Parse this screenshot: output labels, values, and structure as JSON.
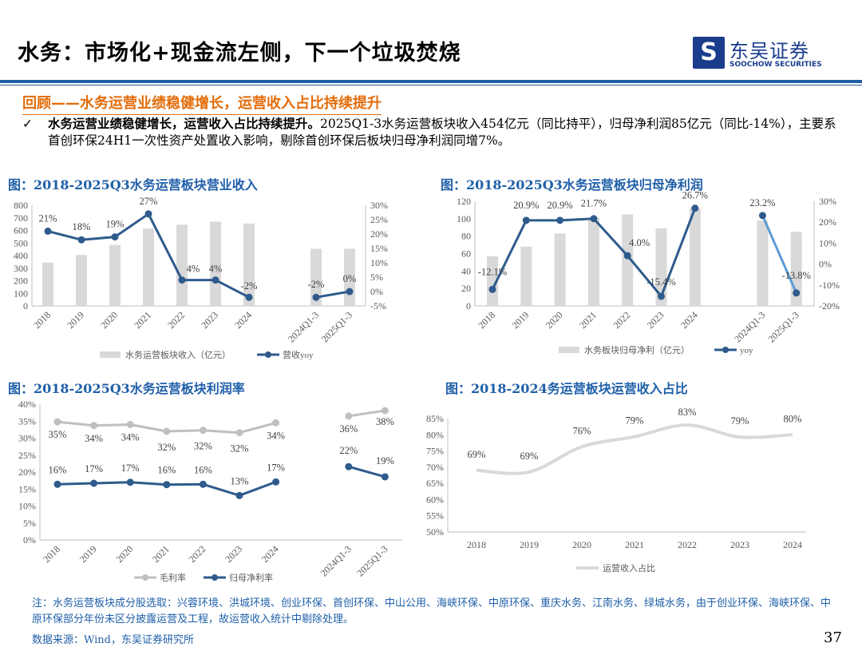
{
  "header": {
    "title": "水务：市场化+现金流左侧，下一个垃圾焚烧",
    "logo_cn": "东吴证券",
    "logo_en": "SOOCHOW SECURITIES"
  },
  "subheading": "回顾——水务运营业绩稳健增长，运营收入占比持续提升",
  "bullet": {
    "icon": "checkmark-icon",
    "bold": "水务运营业绩稳健增长，运营收入占比持续提升。",
    "text": "2025Q1-3水务运营板块收入454亿元（同比持平），归母净利润85亿元（同比-14%），主要系首创环保24H1一次性资产处置收入影响，剔除首创环保后板块归母净利润同增7%。"
  },
  "colors": {
    "title_blue": "#1f5fa8",
    "accent_orange": "#e36c09",
    "bar_gray": "#d9d9d9",
    "line_navy": "#2e5b8c",
    "line_light_blue": "#5b9bd5",
    "line_gray": "#bfbfbf"
  },
  "chart_data": [
    {
      "type": "bar+line",
      "title": "图：2018-2025Q3水务运营板块营业收入",
      "categories": [
        "2018",
        "2019",
        "2020",
        "2021",
        "2022",
        "2023",
        "2024",
        "2024Q1-3",
        "2025Q1-3"
      ],
      "series": [
        {
          "name": "水务运营板块收入（亿元）",
          "type": "bar",
          "axis": "left",
          "values": [
            345,
            405,
            485,
            615,
            645,
            670,
            655,
            454,
            454
          ]
        },
        {
          "name": "营收yoy",
          "type": "line",
          "axis": "right",
          "values": [
            21,
            18,
            19,
            27,
            4,
            4,
            -2,
            -2,
            0
          ],
          "labels": [
            "21%",
            "18%",
            "19%",
            "27%",
            "4%",
            "4%",
            "-2%",
            "-2%",
            "0%"
          ]
        }
      ],
      "y_left": {
        "min": 0,
        "max": 800,
        "ticks": [
          "0",
          "100",
          "200",
          "300",
          "400",
          "500",
          "600",
          "700",
          "800"
        ]
      },
      "y_right": {
        "min": -5,
        "max": 30,
        "ticks": [
          "-5%",
          "0%",
          "5%",
          "10%",
          "15%",
          "20%",
          "25%",
          "30%"
        ]
      },
      "legend": "bottom"
    },
    {
      "type": "bar+line",
      "title": "图：2018-2025Q3水务运营板块归母净利润",
      "categories": [
        "2018",
        "2019",
        "2020",
        "2021",
        "2022",
        "2023",
        "2024",
        "2024Q1-3",
        "2025Q1-3"
      ],
      "series": [
        {
          "name": "水务板块归母净利（亿元）",
          "type": "bar",
          "axis": "left",
          "values": [
            57,
            68,
            83,
            101,
            105,
            89,
            112,
            98,
            85
          ]
        },
        {
          "name": "yoy",
          "type": "line",
          "axis": "right",
          "values": [
            -12.1,
            20.9,
            20.9,
            21.7,
            4.0,
            -15.4,
            26.7,
            23.2,
            -13.8
          ],
          "labels": [
            "-12.1%",
            "20.9%",
            "20.9%",
            "21.7%",
            "4.0%",
            "-15.4%",
            "26.7%",
            "23.2%",
            "-13.8%"
          ]
        }
      ],
      "y_left": {
        "min": 0,
        "max": 120,
        "ticks": [
          "0",
          "20",
          "40",
          "60",
          "80",
          "100",
          "120"
        ]
      },
      "y_right": {
        "min": -20,
        "max": 30,
        "ticks": [
          "-20%",
          "-10%",
          "0%",
          "10%",
          "20%",
          "30%"
        ]
      },
      "legend": "bottom"
    },
    {
      "type": "line",
      "title": "图：2018-2025Q3水务运营板块利润率",
      "categories": [
        "2018",
        "2019",
        "2020",
        "2021",
        "2022",
        "2023",
        "2024",
        "2024Q1-3",
        "2025Q1-3"
      ],
      "series": [
        {
          "name": "毛利率",
          "values": [
            34.8,
            33.7,
            34.0,
            32.0,
            32.3,
            31.6,
            34.5,
            36.5,
            38.1
          ],
          "labels": [
            "35%",
            "34%",
            "34%",
            "32%",
            "32%",
            "32%",
            "34%",
            "36%",
            "38%"
          ]
        },
        {
          "name": "归母净利率",
          "values": [
            16.4,
            16.7,
            17.0,
            16.3,
            16.4,
            13.1,
            17.1,
            21.6,
            18.6
          ],
          "labels": [
            "16%",
            "17%",
            "17%",
            "16%",
            "16%",
            "13%",
            "17%",
            "22%",
            "19%"
          ]
        }
      ],
      "y_left": {
        "min": 0,
        "max": 40,
        "ticks": [
          "0%",
          "5%",
          "10%",
          "15%",
          "20%",
          "25%",
          "30%",
          "35%",
          "40%"
        ]
      },
      "legend": "bottom"
    },
    {
      "type": "line",
      "title": "图：2018-2024务运营板块运营收入占比",
      "categories": [
        "2018",
        "2019",
        "2020",
        "2021",
        "2022",
        "2023",
        "2024"
      ],
      "series": [
        {
          "name": "运营收入占比",
          "values": [
            69,
            68.5,
            76.3,
            79.4,
            83,
            79.3,
            80
          ],
          "labels": [
            "69%",
            "69%",
            "76%",
            "79%",
            "83%",
            "79%",
            "80%"
          ]
        }
      ],
      "y_left": {
        "min": 50,
        "max": 85,
        "ticks": [
          "50%",
          "55%",
          "60%",
          "65%",
          "70%",
          "75%",
          "80%",
          "85%"
        ]
      },
      "legend": "bottom"
    }
  ],
  "footer": {
    "note": "注：水务运营板块成分股选取：兴蓉环境、洪城环境、创业环保、首创环保、中山公用、海峡环保、中原环保、重庆水务、江南水务、绿城水务，由于创业环保、海峡环保、中原环保部分年份未区分披露运营及工程，故运营收入统计中剔除处理。",
    "source": "数据来源：Wind，东吴证券研究所",
    "page": "37"
  }
}
